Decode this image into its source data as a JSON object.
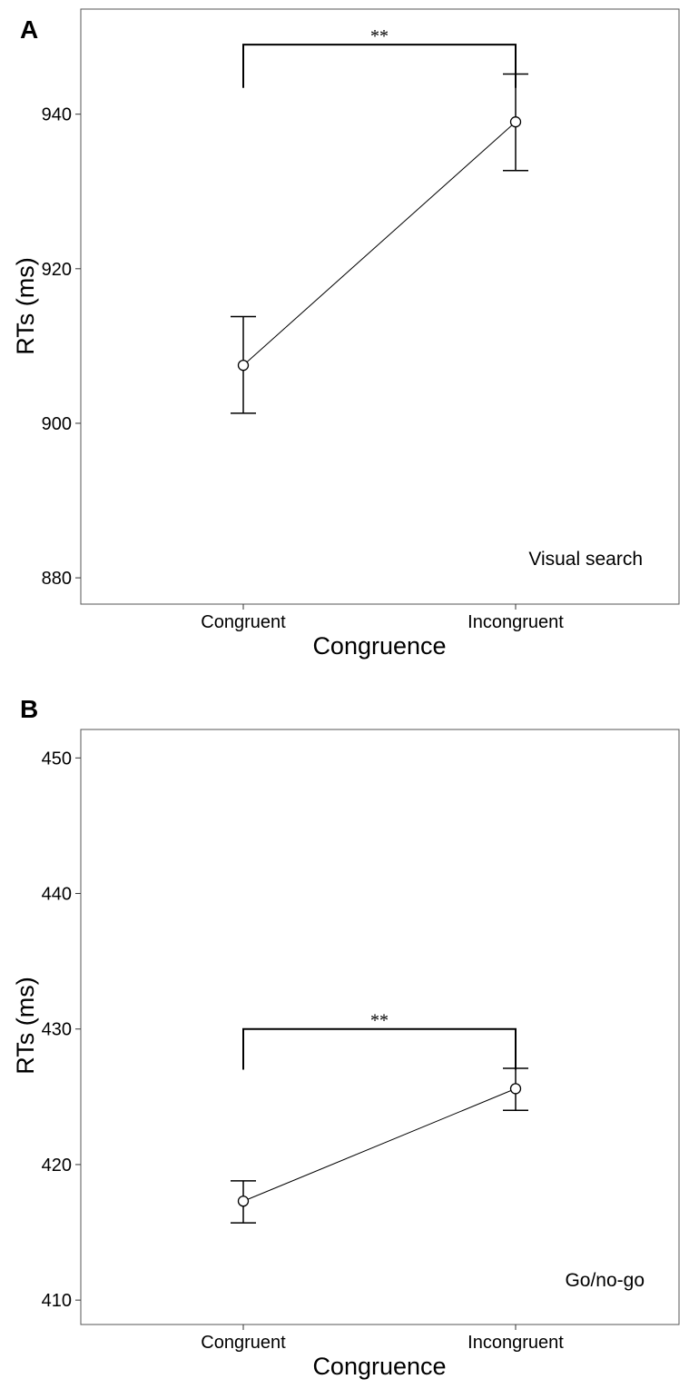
{
  "chart_data": [
    {
      "type": "line",
      "panel_label": "A",
      "categories": [
        "Congruent",
        "Incongruent"
      ],
      "values": [
        907.5,
        939.0
      ],
      "error_lower": [
        901.3,
        932.7
      ],
      "error_upper": [
        913.8,
        945.2
      ],
      "xlabel": "Congruence",
      "ylabel": "RTs (ms)",
      "yticks": [
        "880",
        "900",
        "920",
        "940"
      ],
      "ylim": [
        876.6,
        953.6
      ],
      "grid": false,
      "annotation": "Visual search",
      "significance": {
        "label": "**",
        "from": "Congruent",
        "to": "Incongruent",
        "y_top": 949.0,
        "y_drop": 943.4
      }
    },
    {
      "type": "line",
      "panel_label": "B",
      "categories": [
        "Congruent",
        "Incongruent"
      ],
      "values": [
        417.3,
        425.6
      ],
      "error_lower": [
        415.7,
        424.0
      ],
      "error_upper": [
        418.8,
        427.1
      ],
      "xlabel": "Congruence",
      "ylabel": "RTs (ms)",
      "yticks": [
        "410",
        "420",
        "430",
        "440",
        "450"
      ],
      "ylim": [
        408.2,
        452.1
      ],
      "grid": false,
      "annotation": "Go/no-go",
      "significance": {
        "label": "**",
        "from": "Congruent",
        "to": "Incongruent",
        "y_top": 430.0,
        "y_drop": 427.0
      }
    }
  ]
}
